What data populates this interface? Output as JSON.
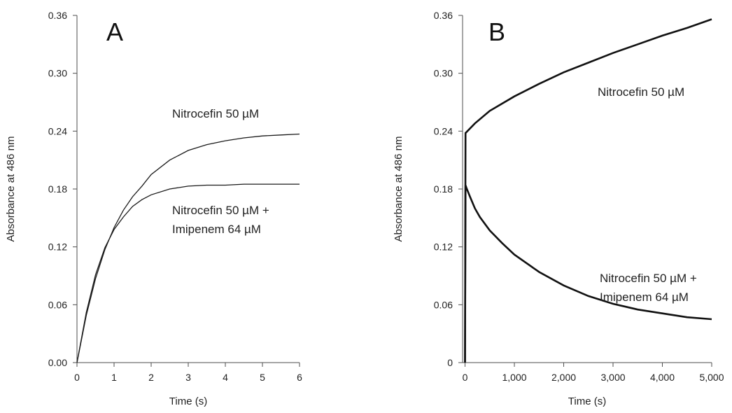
{
  "chart_data": [
    {
      "type": "line",
      "panel_label": "A",
      "xlabel": "Time (s)",
      "ylabel": "Absorbance at 486 nm",
      "xlim": [
        0,
        6
      ],
      "ylim": [
        0,
        0.36
      ],
      "x_ticks": [
        "0",
        "1",
        "2",
        "3",
        "4",
        "5",
        "6"
      ],
      "y_ticks": [
        "0.00",
        "0.06",
        "0.12",
        "0.18",
        "0.24",
        "0.30",
        "0.36"
      ],
      "grid": false,
      "series": [
        {
          "name": "Nitrocefin 50 µM",
          "label_lines": [
            "Nitrocefin 50 µM"
          ],
          "x": [
            0,
            0.25,
            0.5,
            0.75,
            1,
            1.25,
            1.5,
            1.75,
            2,
            2.5,
            3,
            3.5,
            4,
            4.5,
            5,
            5.5,
            6
          ],
          "y": [
            0,
            0.049,
            0.087,
            0.117,
            0.14,
            0.158,
            0.172,
            0.183,
            0.195,
            0.21,
            0.22,
            0.226,
            0.23,
            0.233,
            0.235,
            0.236,
            0.237
          ]
        },
        {
          "name": "Nitrocefin 50 µM + Imipenem 64 µM",
          "label_lines": [
            "Nitrocefin 50 µM +",
            "Imipenem 64 µM"
          ],
          "x": [
            0,
            0.25,
            0.5,
            0.75,
            1,
            1.25,
            1.5,
            1.75,
            2,
            2.5,
            3,
            3.5,
            4,
            4.5,
            5,
            5.5,
            6
          ],
          "y": [
            0,
            0.052,
            0.091,
            0.119,
            0.138,
            0.151,
            0.162,
            0.169,
            0.174,
            0.18,
            0.183,
            0.184,
            0.184,
            0.185,
            0.185,
            0.185,
            0.185
          ]
        }
      ]
    },
    {
      "type": "line",
      "panel_label": "B",
      "xlabel": "Time (s)",
      "ylabel": "Absorbance at 486 nm",
      "xlim": [
        -50,
        5000
      ],
      "ylim": [
        0,
        0.36
      ],
      "x_ticks": [
        "0",
        "1,000",
        "2,000",
        "3,000",
        "4,000",
        "5,000"
      ],
      "y_ticks": [
        "0",
        "0.06",
        "0.12",
        "0.18",
        "0.24",
        "0.30",
        "0.36"
      ],
      "grid": false,
      "series": [
        {
          "name": "Nitrocefin 50 µM",
          "label_lines": [
            "Nitrocefin 50 µM"
          ],
          "x": [
            0,
            10,
            30,
            200,
            500,
            1000,
            1500,
            2000,
            2500,
            3000,
            3500,
            4000,
            4500,
            5000
          ],
          "y": [
            0,
            0.238,
            0.239,
            0.248,
            0.261,
            0.276,
            0.289,
            0.301,
            0.311,
            0.321,
            0.33,
            0.339,
            0.347,
            0.356
          ]
        },
        {
          "name": "Nitrocefin 50 µM + Imipenem 64 µM",
          "label_lines": [
            "Nitrocefin 50 µM +",
            "Imipenem 64 µM"
          ],
          "x": [
            0,
            10,
            30,
            100,
            200,
            300,
            500,
            750,
            1000,
            1500,
            2000,
            2500,
            3000,
            3500,
            4000,
            4500,
            5000
          ],
          "y": [
            0,
            0.184,
            0.181,
            0.172,
            0.16,
            0.151,
            0.137,
            0.124,
            0.112,
            0.094,
            0.08,
            0.069,
            0.061,
            0.055,
            0.051,
            0.047,
            0.045
          ]
        }
      ]
    }
  ]
}
